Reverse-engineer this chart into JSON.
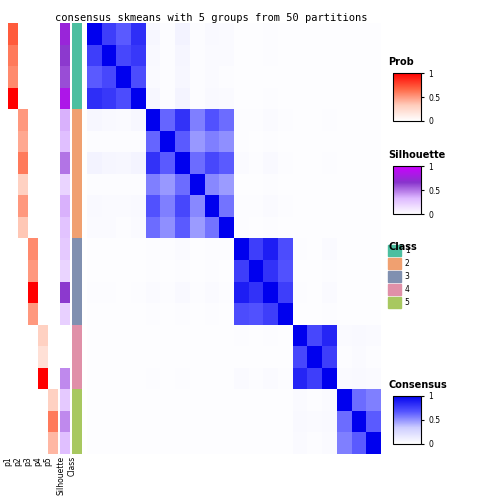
{
  "title": "consensus skmeans with 5 groups from 50 partitions",
  "n_samples": 20,
  "group_sizes": [
    4,
    6,
    4,
    3,
    3
  ],
  "prob_data": {
    "p1": [
      0.7,
      0.6,
      0.55,
      1.0,
      0.0,
      0.0,
      0.0,
      0.0,
      0.0,
      0.0,
      0.0,
      0.0,
      0.0,
      0.0,
      0.0,
      0.0,
      0.0,
      0.0,
      0.0,
      0.0
    ],
    "p2": [
      0.0,
      0.0,
      0.0,
      0.0,
      0.5,
      0.45,
      0.6,
      0.3,
      0.5,
      0.35,
      0.0,
      0.0,
      0.0,
      0.0,
      0.0,
      0.0,
      0.0,
      0.0,
      0.0,
      0.0
    ],
    "p3": [
      0.0,
      0.0,
      0.0,
      0.0,
      0.0,
      0.0,
      0.0,
      0.0,
      0.0,
      0.0,
      0.55,
      0.5,
      1.0,
      0.5,
      0.0,
      0.0,
      0.0,
      0.0,
      0.0,
      0.0
    ],
    "p4": [
      0.0,
      0.0,
      0.0,
      0.0,
      0.0,
      0.0,
      0.0,
      0.0,
      0.0,
      0.0,
      0.0,
      0.0,
      0.0,
      0.0,
      0.3,
      0.2,
      1.0,
      0.0,
      0.0,
      0.0
    ],
    "p5": [
      0.0,
      0.0,
      0.0,
      0.0,
      0.0,
      0.0,
      0.0,
      0.0,
      0.0,
      0.0,
      0.0,
      0.0,
      0.0,
      0.0,
      0.0,
      0.0,
      0.0,
      0.3,
      0.6,
      0.4
    ]
  },
  "silhouette": [
    0.75,
    0.65,
    0.6,
    0.85,
    0.35,
    0.3,
    0.5,
    0.2,
    0.35,
    0.28,
    0.25,
    0.2,
    0.65,
    0.22,
    0.0,
    0.0,
    0.45,
    0.25,
    0.45,
    0.3
  ],
  "class_labels": [
    1,
    1,
    1,
    1,
    2,
    2,
    2,
    2,
    2,
    2,
    3,
    3,
    3,
    3,
    4,
    4,
    4,
    5,
    5,
    5
  ],
  "class_colors": {
    "1": "#4CBFA0",
    "2": "#F0A070",
    "3": "#8090B0",
    "4": "#E090A8",
    "5": "#A8C860"
  },
  "consensus_matrix": [
    [
      1.0,
      0.75,
      0.65,
      0.82,
      0.05,
      0.02,
      0.08,
      0.02,
      0.04,
      0.03,
      0.01,
      0.01,
      0.02,
      0.01,
      0.01,
      0.01,
      0.01,
      0.01,
      0.01,
      0.01
    ],
    [
      0.75,
      1.0,
      0.72,
      0.78,
      0.04,
      0.02,
      0.06,
      0.02,
      0.03,
      0.03,
      0.01,
      0.01,
      0.02,
      0.01,
      0.01,
      0.01,
      0.01,
      0.01,
      0.01,
      0.01
    ],
    [
      0.65,
      0.72,
      1.0,
      0.7,
      0.03,
      0.02,
      0.05,
      0.02,
      0.03,
      0.02,
      0.01,
      0.01,
      0.01,
      0.01,
      0.01,
      0.01,
      0.01,
      0.01,
      0.01,
      0.01
    ],
    [
      0.82,
      0.78,
      0.7,
      1.0,
      0.05,
      0.02,
      0.07,
      0.02,
      0.04,
      0.03,
      0.01,
      0.01,
      0.02,
      0.01,
      0.01,
      0.01,
      0.01,
      0.01,
      0.01,
      0.01
    ],
    [
      0.05,
      0.04,
      0.03,
      0.05,
      1.0,
      0.62,
      0.8,
      0.55,
      0.68,
      0.6,
      0.02,
      0.02,
      0.03,
      0.02,
      0.01,
      0.01,
      0.02,
      0.01,
      0.01,
      0.01
    ],
    [
      0.02,
      0.02,
      0.02,
      0.02,
      0.62,
      1.0,
      0.65,
      0.48,
      0.55,
      0.5,
      0.02,
      0.01,
      0.02,
      0.01,
      0.01,
      0.01,
      0.01,
      0.01,
      0.01,
      0.01
    ],
    [
      0.08,
      0.06,
      0.05,
      0.07,
      0.8,
      0.65,
      1.0,
      0.6,
      0.72,
      0.65,
      0.03,
      0.02,
      0.04,
      0.02,
      0.01,
      0.01,
      0.02,
      0.01,
      0.01,
      0.01
    ],
    [
      0.02,
      0.02,
      0.02,
      0.02,
      0.55,
      0.48,
      0.6,
      1.0,
      0.52,
      0.47,
      0.01,
      0.01,
      0.02,
      0.01,
      0.01,
      0.01,
      0.01,
      0.01,
      0.01,
      0.01
    ],
    [
      0.04,
      0.03,
      0.03,
      0.04,
      0.68,
      0.55,
      0.72,
      0.52,
      1.0,
      0.58,
      0.02,
      0.02,
      0.03,
      0.02,
      0.01,
      0.01,
      0.01,
      0.01,
      0.01,
      0.01
    ],
    [
      0.03,
      0.03,
      0.02,
      0.03,
      0.6,
      0.5,
      0.65,
      0.47,
      0.58,
      1.0,
      0.02,
      0.01,
      0.02,
      0.01,
      0.01,
      0.01,
      0.01,
      0.01,
      0.01,
      0.01
    ],
    [
      0.01,
      0.01,
      0.01,
      0.01,
      0.02,
      0.02,
      0.03,
      0.01,
      0.02,
      0.02,
      1.0,
      0.75,
      0.88,
      0.7,
      0.02,
      0.01,
      0.03,
      0.01,
      0.01,
      0.01
    ],
    [
      0.01,
      0.01,
      0.01,
      0.01,
      0.02,
      0.01,
      0.02,
      0.01,
      0.02,
      0.01,
      0.75,
      1.0,
      0.8,
      0.68,
      0.01,
      0.01,
      0.02,
      0.01,
      0.01,
      0.01
    ],
    [
      0.02,
      0.02,
      0.01,
      0.02,
      0.03,
      0.02,
      0.04,
      0.02,
      0.03,
      0.02,
      0.88,
      0.8,
      1.0,
      0.75,
      0.02,
      0.01,
      0.03,
      0.01,
      0.01,
      0.01
    ],
    [
      0.01,
      0.01,
      0.01,
      0.01,
      0.02,
      0.01,
      0.02,
      0.01,
      0.02,
      0.01,
      0.7,
      0.68,
      0.75,
      1.0,
      0.01,
      0.01,
      0.02,
      0.01,
      0.01,
      0.01
    ],
    [
      0.01,
      0.01,
      0.01,
      0.01,
      0.01,
      0.01,
      0.01,
      0.01,
      0.01,
      0.01,
      0.02,
      0.01,
      0.02,
      0.01,
      1.0,
      0.72,
      0.85,
      0.03,
      0.04,
      0.03
    ],
    [
      0.01,
      0.01,
      0.01,
      0.01,
      0.01,
      0.01,
      0.01,
      0.01,
      0.01,
      0.01,
      0.01,
      0.01,
      0.01,
      0.01,
      0.72,
      1.0,
      0.75,
      0.02,
      0.03,
      0.02
    ],
    [
      0.01,
      0.01,
      0.01,
      0.01,
      0.02,
      0.01,
      0.02,
      0.01,
      0.01,
      0.01,
      0.03,
      0.02,
      0.03,
      0.02,
      0.85,
      0.75,
      1.0,
      0.03,
      0.04,
      0.03
    ],
    [
      0.01,
      0.01,
      0.01,
      0.01,
      0.01,
      0.01,
      0.01,
      0.01,
      0.01,
      0.01,
      0.01,
      0.01,
      0.01,
      0.01,
      0.03,
      0.02,
      0.03,
      1.0,
      0.6,
      0.55
    ],
    [
      0.01,
      0.01,
      0.01,
      0.01,
      0.01,
      0.01,
      0.01,
      0.01,
      0.01,
      0.01,
      0.01,
      0.01,
      0.01,
      0.01,
      0.04,
      0.03,
      0.04,
      0.6,
      1.0,
      0.65
    ],
    [
      0.01,
      0.01,
      0.01,
      0.01,
      0.01,
      0.01,
      0.01,
      0.01,
      0.01,
      0.01,
      0.01,
      0.01,
      0.01,
      0.01,
      0.03,
      0.02,
      0.03,
      0.55,
      0.65,
      1.0
    ]
  ],
  "prob_cmap_colors": [
    "#FFFFFF",
    "#FFCCBB",
    "#FF6644",
    "#FF0000"
  ],
  "silhouette_cmap_colors": [
    "#FFFFFF",
    "#DDB8FF",
    "#8833CC",
    "#CC00FF"
  ],
  "consensus_cmap_colors": [
    "#FFFFFF",
    "#CCCCFF",
    "#5555FF",
    "#0000EE"
  ]
}
